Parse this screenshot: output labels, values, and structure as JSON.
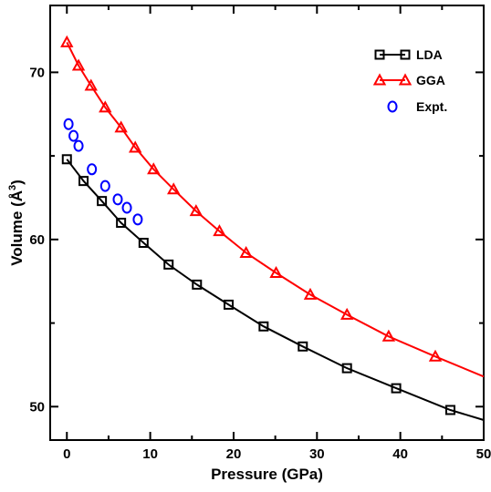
{
  "chart_data": {
    "type": "line",
    "xlabel": "Pressure (GPa)",
    "ylabel": "Volume (Å³)",
    "ylabel_main": "Volume (Å",
    "ylabel_sup": "3",
    "ylabel_close": ")",
    "xlim": [
      -2,
      50
    ],
    "ylim": [
      48,
      74
    ],
    "xticks": [
      0,
      10,
      20,
      30,
      40,
      50
    ],
    "yticks": [
      50,
      60,
      70
    ],
    "legend_position": "top-right",
    "series": [
      {
        "name": "LDA",
        "color": "#000000",
        "marker": "square",
        "line": true,
        "x": [
          0.0,
          2.0,
          4.2,
          6.5,
          9.2,
          12.2,
          15.6,
          19.4,
          23.6,
          28.3,
          33.6,
          39.5,
          46.0
        ],
        "y": [
          64.8,
          63.5,
          62.3,
          61.0,
          59.8,
          58.5,
          57.3,
          56.1,
          54.8,
          53.6,
          52.3,
          51.1,
          49.8
        ],
        "curve_end": [
          50.0,
          49.2
        ]
      },
      {
        "name": "GGA",
        "color": "#ff0000",
        "marker": "triangle",
        "line": true,
        "x": [
          0.0,
          1.4,
          2.9,
          4.6,
          6.5,
          8.2,
          10.4,
          12.8,
          15.5,
          18.3,
          21.5,
          25.1,
          29.2,
          33.6,
          38.6,
          44.2
        ],
        "y": [
          71.8,
          70.4,
          69.2,
          67.9,
          66.7,
          65.5,
          64.2,
          63.0,
          61.7,
          60.5,
          59.2,
          58.0,
          56.7,
          55.5,
          54.2,
          53.0
        ],
        "curve_end": [
          50.0,
          51.8
        ]
      },
      {
        "name": "Expt.",
        "color": "#0000ff",
        "marker": "circle",
        "line": false,
        "x": [
          0.2,
          0.8,
          1.4,
          3.0,
          4.6,
          6.1,
          7.2,
          8.5
        ],
        "y": [
          66.9,
          66.2,
          65.6,
          64.2,
          63.2,
          62.4,
          61.9,
          61.2
        ]
      }
    ]
  }
}
